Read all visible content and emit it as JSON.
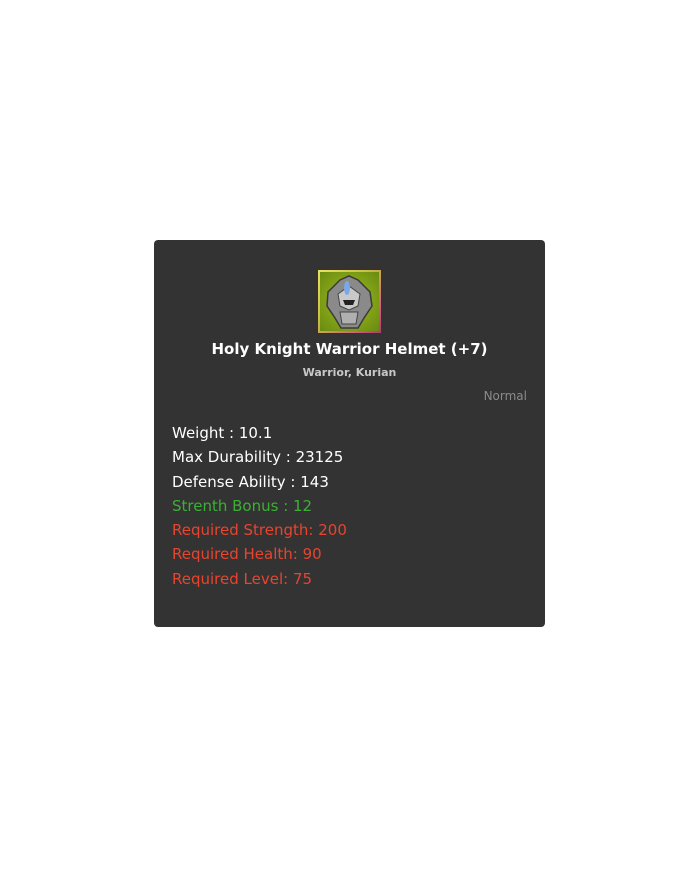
{
  "item": {
    "name": "Holy Knight Warrior Helmet (+7)",
    "classes": "Warrior, Kurian",
    "grade": "Normal",
    "icon": "helmet-icon",
    "stats": [
      {
        "text": "Weight : 10.1",
        "color": "#ffffff"
      },
      {
        "text": "Max Durability : 23125",
        "color": "#ffffff"
      },
      {
        "text": "Defense Ability : 143",
        "color": "#ffffff"
      },
      {
        "text": "Strenth Bonus : 12",
        "color": "#3cb034"
      },
      {
        "text": "Required Strength: 200",
        "color": "#e8442e"
      },
      {
        "text": "Required Health: 90",
        "color": "#e8442e"
      },
      {
        "text": "Required Level: 75",
        "color": "#e8442e"
      }
    ]
  }
}
